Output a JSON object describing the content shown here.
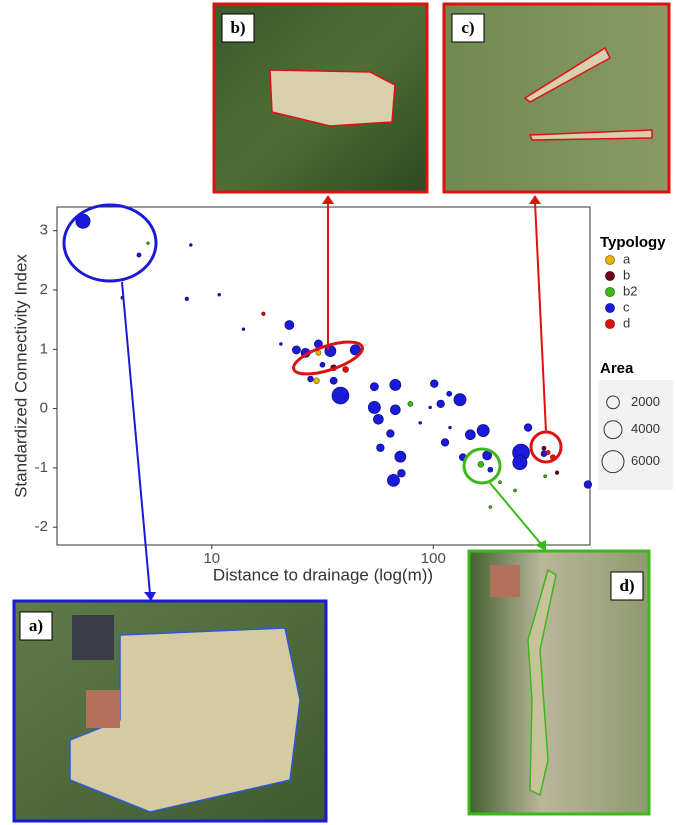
{
  "chart_data": {
    "type": "scatter",
    "x_label": "Distance to drainage (log(m))",
    "y_label": "Standardized Connectivity Index",
    "xlim": [
      2,
      510
    ],
    "ylim": [
      -2.3,
      3.4
    ],
    "xticks": [
      10,
      100
    ],
    "yticks": [
      -2,
      -1,
      0,
      1,
      2,
      3
    ],
    "x_log": true,
    "grid": false,
    "legend_title": "Typology",
    "series": [
      {
        "name": "a",
        "color": "#e8b400",
        "x": [
          30.3,
          29.7
        ],
        "y": [
          0.94,
          0.47
        ],
        "size": [
          300,
          400
        ]
      },
      {
        "name": "b",
        "color": "#6b0020",
        "x": [
          35.5,
          316,
          362
        ],
        "y": [
          0.69,
          -0.67,
          -1.08
        ],
        "size": [
          400,
          200,
          150
        ]
      },
      {
        "name": "b2",
        "color": "#3cb81a",
        "x": [
          5.15,
          78.8,
          164,
          320,
          200,
          234,
          181
        ],
        "y": [
          2.79,
          0.08,
          -0.94,
          -1.14,
          -1.24,
          -1.38,
          -1.66
        ],
        "size": [
          60,
          300,
          400,
          100,
          100,
          100,
          100
        ]
      },
      {
        "name": "c",
        "color": "#1a1adb",
        "x": [
          2.62,
          4.69,
          8.04,
          7.71,
          10.8,
          3.94,
          13.9,
          22.4,
          24.1,
          26.5,
          30.3,
          31.6,
          34.3,
          44.5,
          38.1,
          35.5,
          27.9,
          54.2,
          67.4,
          54.2,
          56.5,
          67.4,
          101,
          108,
          118,
          132,
          64.0,
          71.0,
          57.7,
          113,
          168,
          147,
          175,
          136,
          181,
          249,
          246,
          316,
          268,
          499,
          66.1,
          71.8,
          20.5,
          87.3,
          96.8,
          119
        ],
        "y": [
          3.16,
          2.59,
          2.76,
          1.85,
          1.92,
          1.87,
          1.34,
          1.41,
          0.99,
          0.94,
          1.09,
          0.74,
          0.97,
          0.99,
          0.22,
          0.47,
          0.5,
          0.37,
          0.4,
          0.02,
          -0.18,
          -0.02,
          0.42,
          0.08,
          0.25,
          0.15,
          -0.42,
          -0.81,
          -0.66,
          -0.57,
          -0.37,
          -0.44,
          -0.79,
          -0.82,
          -1.03,
          -0.74,
          -0.91,
          -0.76,
          -0.32,
          -1.28,
          -1.21,
          -1.09,
          1.09,
          -0.24,
          0.02,
          -0.32
        ],
        "size": [
          2500,
          200,
          30,
          150,
          30,
          30,
          30,
          1000,
          800,
          1000,
          800,
          300,
          1500,
          1300,
          3500,
          600,
          400,
          800,
          1500,
          1800,
          1200,
          1200,
          700,
          700,
          300,
          1800,
          700,
          1500,
          700,
          700,
          1800,
          1200,
          1000,
          600,
          300,
          3500,
          2500,
          400,
          700,
          700,
          1800,
          700,
          30,
          30,
          30,
          30
        ]
      },
      {
        "name": "d",
        "color": "#e01010",
        "x": [
          17.1,
          40.2,
          347,
          330
        ],
        "y": [
          1.6,
          0.66,
          -0.82,
          -0.74
        ],
        "size": [
          150,
          400,
          300,
          200
        ]
      }
    ],
    "size_legend": {
      "title": "Area",
      "sizes": [
        2000,
        4000,
        6000
      ]
    },
    "panels": [
      {
        "label": "a)"
      },
      {
        "label": "b)"
      },
      {
        "label": "c)"
      },
      {
        "label": "d)"
      }
    ]
  }
}
